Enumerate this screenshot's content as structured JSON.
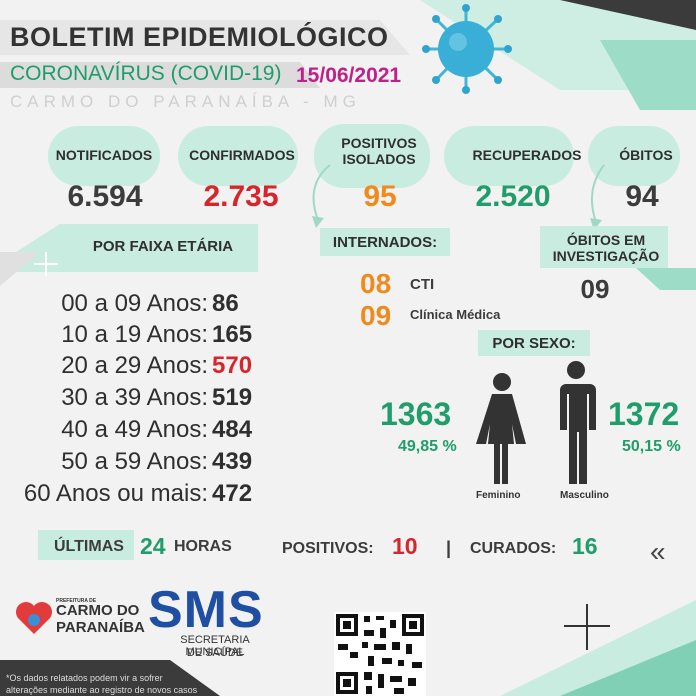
{
  "header": {
    "title": "BOLETIM EPIDEMIOLÓGICO",
    "subtitle": "CORONAVÍRUS (COVID-19)",
    "date": "15/06/2021",
    "city": "CARMO DO PARANAÍBA - MG"
  },
  "stats": {
    "notificados": {
      "label": "NOTIFICADOS",
      "value": "6.594"
    },
    "confirmados": {
      "label": "CONFIRMADOS",
      "value": "2.735"
    },
    "positivos_isolados": {
      "label_line1": "POSITIVOS",
      "label_line2": "ISOLADOS",
      "value": "95"
    },
    "recuperados": {
      "label": "RECUPERADOS",
      "value": "2.520"
    },
    "obitos": {
      "label": "ÓBITOS",
      "value": "94"
    }
  },
  "faixa_etaria": {
    "title": "POR FAIXA ETÁRIA",
    "rows": [
      {
        "label": "00 a 09 Anos:",
        "value": "86"
      },
      {
        "label": "10 a 19 Anos:",
        "value": "165"
      },
      {
        "label": "20 a 29 Anos:",
        "value": "570"
      },
      {
        "label": "30 a 39 Anos:",
        "value": "519"
      },
      {
        "label": "40 a 49 Anos:",
        "value": "484"
      },
      {
        "label": "50 a 59 Anos:",
        "value": "439"
      },
      {
        "label": "60 Anos ou mais:",
        "value": "472"
      }
    ]
  },
  "internados": {
    "title": "INTERNADOS:",
    "cti": {
      "value": "08",
      "label": "CTI"
    },
    "clinica": {
      "value": "09",
      "label": "Clínica Médica"
    }
  },
  "obitos_investigacao": {
    "label_line1": "ÓBITOS EM",
    "label_line2": "INVESTIGAÇÃO",
    "value": "09"
  },
  "por_sexo": {
    "title": "POR SEXO:",
    "feminino": {
      "count": "1363",
      "percent": "49,85 %",
      "label": "Feminino"
    },
    "masculino": {
      "count": "1372",
      "percent": "50,15 %",
      "label": "Masculino"
    }
  },
  "ultimas_24h": {
    "prefix": "ÚLTIMAS",
    "hours": "24",
    "suffix": "HORAS",
    "positivos_label": "POSITIVOS:",
    "positivos_value": "10",
    "separator": "|",
    "curados_label": "CURADOS:",
    "curados_value": "16",
    "chevron": "«"
  },
  "footer": {
    "prefeitura_small": "PREFEITURA DE",
    "carmo_line1": "CARMO DO",
    "carmo_line2": "PARANAÍBA",
    "sms": "SMS",
    "sms_line1": "SECRETARIA MUNICIPAL",
    "sms_line2": "DE SAÚDE",
    "disclaimer_line1": "*Os dados relatados podem vir a sofrer",
    "disclaimer_line2": "alterações mediante ao registro de novos casos"
  },
  "colors": {
    "teal": "#1f9d6a",
    "mint": "#c9ece1",
    "red": "#d7262b",
    "orange": "#f08a1c",
    "magenta": "#c0208a"
  }
}
